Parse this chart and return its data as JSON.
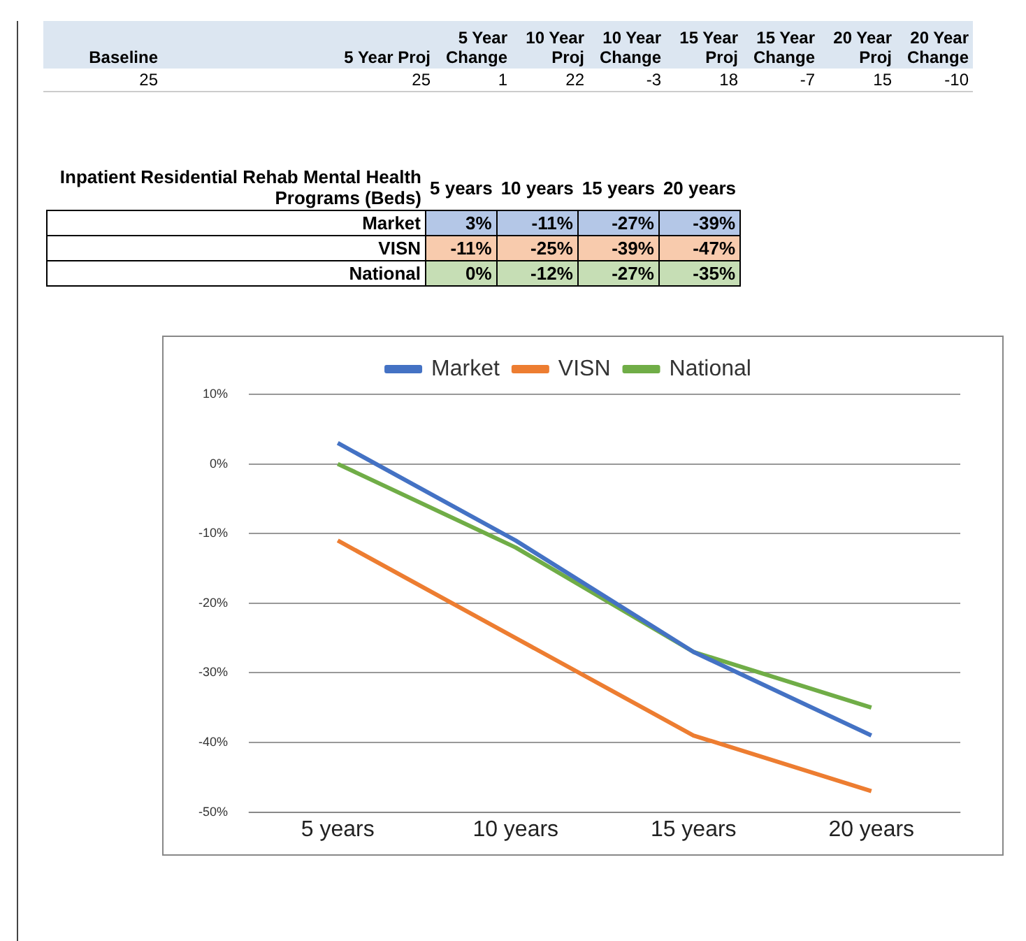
{
  "chart_data": {
    "type": "line",
    "title": "Inpatient Residential Rehab Mental Health Programs (Beds)",
    "annotations": [
      "Baseline",
      "5 Year Proj",
      "5 Year Change",
      "10 Year Proj",
      "10 Year Change",
      "15 Year Proj",
      "15 Year Change",
      "20 Year Proj",
      "20 Year Change",
      "25",
      "25",
      "1",
      "22",
      "-3",
      "18",
      "-7",
      "15",
      "-10",
      "3%",
      "-11%",
      "-27%",
      "-39%",
      "-11%",
      "-25%",
      "-39%",
      "-47%",
      "0%",
      "-12%",
      "-27%",
      "-35%"
    ],
    "categories": [
      "5 years",
      "10 years",
      "15 years",
      "20 years"
    ],
    "series": [
      {
        "name": "Market",
        "color": "#4472c4",
        "values": [
          3,
          -11,
          -27,
          -39
        ]
      },
      {
        "name": "VISN",
        "color": "#ed7d31",
        "values": [
          -11,
          -25,
          -39,
          -47
        ]
      },
      {
        "name": "National",
        "color": "#70ad47",
        "values": [
          0,
          -12,
          -27,
          -35
        ]
      }
    ],
    "ylim": [
      -50,
      10
    ],
    "yticks": [
      {
        "value": 10,
        "label": "10%"
      },
      {
        "value": 0,
        "label": "0%"
      },
      {
        "value": -10,
        "label": "-10%"
      },
      {
        "value": -20,
        "label": "-20%"
      },
      {
        "value": -30,
        "label": "-30%"
      },
      {
        "value": -40,
        "label": "-40%"
      },
      {
        "value": -50,
        "label": "-50%"
      }
    ],
    "grid": "y",
    "legend": "top",
    "marker": "none",
    "line_style": "solid"
  }
}
